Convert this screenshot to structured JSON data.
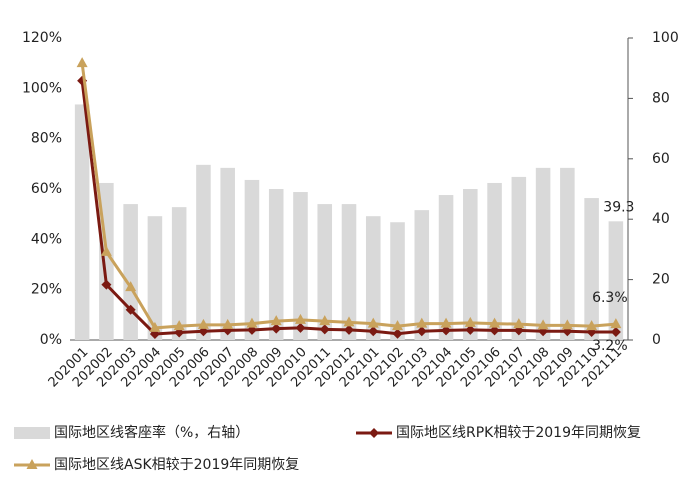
{
  "chart_data": {
    "type": "combo",
    "categories": [
      "202001",
      "202002",
      "202003",
      "202004",
      "202005",
      "202006",
      "202007",
      "202008",
      "202009",
      "202010",
      "202011",
      "202012",
      "202101",
      "202102",
      "202103",
      "202104",
      "202105",
      "202106",
      "202107",
      "202108",
      "202109",
      "202110",
      "202111"
    ],
    "series": [
      {
        "name": "国际地区线客座率（%，右轴）",
        "type": "bar",
        "axis": "y2",
        "color": "#d9d9d9",
        "values": [
          78,
          52,
          45,
          41,
          44,
          58,
          57,
          53,
          50,
          49,
          45,
          45,
          41,
          39,
          43,
          48,
          50,
          52,
          54,
          57,
          57,
          47,
          39.3
        ],
        "show_last_label": true
      },
      {
        "name": "国际地区线RPK相较于2019年同期恢复",
        "type": "line",
        "marker": "diamond",
        "color": "#7b1a12",
        "values": [
          103,
          22,
          12,
          2.4,
          3,
          3.5,
          3.8,
          4,
          4.5,
          4.8,
          4.2,
          4,
          3.5,
          2.5,
          3.5,
          3.8,
          4,
          3.8,
          3.8,
          3.5,
          3.5,
          3.2,
          3.2
        ],
        "value_labels": [
          null,
          null,
          null,
          null,
          null,
          null,
          null,
          null,
          null,
          null,
          null,
          null,
          null,
          null,
          null,
          null,
          null,
          null,
          null,
          null,
          null,
          null,
          "3.2%"
        ]
      },
      {
        "name": "国际地区线ASK相较于2019年同期恢复",
        "type": "line",
        "marker": "triangle",
        "color": "#c9a25c",
        "values": [
          110,
          35,
          21,
          4.8,
          5.5,
          6,
          6,
          6.5,
          7.5,
          8,
          7.5,
          7,
          6.5,
          5.5,
          6.5,
          6.5,
          6.8,
          6.5,
          6.3,
          5.8,
          5.8,
          5.5,
          6.3
        ],
        "value_labels": [
          null,
          null,
          null,
          null,
          null,
          null,
          null,
          null,
          null,
          null,
          null,
          null,
          null,
          null,
          null,
          null,
          null,
          null,
          null,
          null,
          null,
          null,
          "6.3%"
        ]
      }
    ],
    "ylim": [
      0,
      120
    ],
    "yticks": [
      {
        "value": 0,
        "label": "0%"
      },
      {
        "value": 20,
        "label": "20%"
      },
      {
        "value": 40,
        "label": "40%"
      },
      {
        "value": 60,
        "label": "60%"
      },
      {
        "value": 80,
        "label": "80%"
      },
      {
        "value": 100,
        "label": "100%"
      },
      {
        "value": 120,
        "label": "120%"
      }
    ],
    "y2lim": [
      0,
      100
    ],
    "y2ticks": [
      0,
      20,
      40,
      60,
      80,
      100
    ],
    "grid": false
  }
}
